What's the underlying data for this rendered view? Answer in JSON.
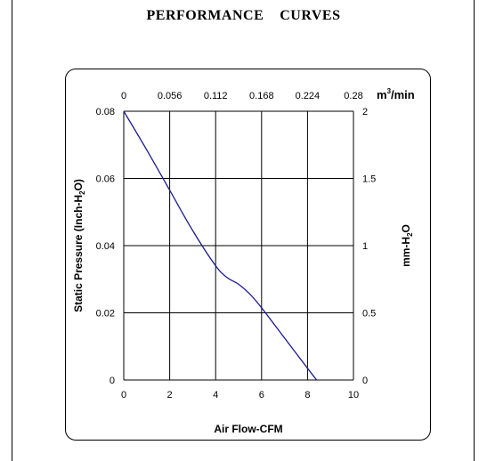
{
  "page": {
    "title": "PERFORMANCE    CURVES"
  },
  "chart_data": {
    "type": "line",
    "xlabel": "Air Flow-CFM",
    "ylabel": "Static Pressure (Inch-H2O)",
    "ylabel_right": "mm-H2O",
    "xlabel_top_unit": "m3/min",
    "xlim": [
      0,
      10
    ],
    "ylim": [
      0,
      0.08
    ],
    "x_ticks": [
      "0",
      "2",
      "4",
      "6",
      "8",
      "10"
    ],
    "y_ticks": [
      "0",
      "0.02",
      "0.04",
      "0.06",
      "0.08"
    ],
    "x_top_ticks": [
      "0",
      "0.056",
      "0.112",
      "0.168",
      "0.224",
      "0.28"
    ],
    "y_right_ticks": [
      "0",
      "0.5",
      "1",
      "1.5",
      "2"
    ],
    "grid": true,
    "line_color": "#1c1c8c",
    "series": [
      {
        "x": [
          0,
          1,
          2,
          3,
          4,
          4.5,
          5,
          5.5,
          6,
          7,
          8,
          8.4
        ],
        "y": [
          0.08,
          0.0685,
          0.0565,
          0.0445,
          0.034,
          0.0305,
          0.0285,
          0.0255,
          0.0215,
          0.0125,
          0.0035,
          0
        ]
      }
    ]
  }
}
